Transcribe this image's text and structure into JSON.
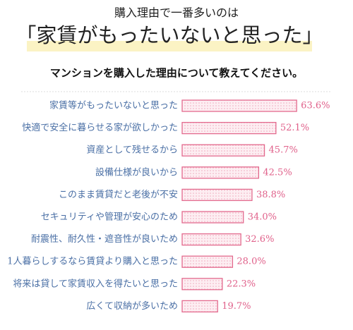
{
  "chart_data": {
    "type": "bar",
    "orientation": "horizontal",
    "title": "購入理由で一番多いのは",
    "headline": "「家賃がもったいないと思った」",
    "subtitle": "マンションを購入した理由について教えてください。",
    "categories": [
      "家賃等がもったいないと思った",
      "快適で安全に暮らせる家が欲しかった",
      "資産として残せるから",
      "設備仕様が良いから",
      "このまま賃貸だと老後が不安",
      "セキュリティや管理が安心のため",
      "耐震性、耐久性・遮音性が良いため",
      "1人暮らしするなら賃貸より購入と思った",
      "将来は貸して家賃収入を得たいと思った",
      "広くて収納が多いため"
    ],
    "values": [
      63.6,
      52.1,
      45.7,
      42.5,
      38.8,
      34.0,
      32.6,
      28.0,
      22.3,
      19.7
    ],
    "value_labels": [
      "63.6%",
      "52.1%",
      "45.7%",
      "42.5%",
      "38.8%",
      "34.0%",
      "32.6%",
      "28.0%",
      "22.3%",
      "19.7%"
    ],
    "color": "#e36a8e"
  }
}
